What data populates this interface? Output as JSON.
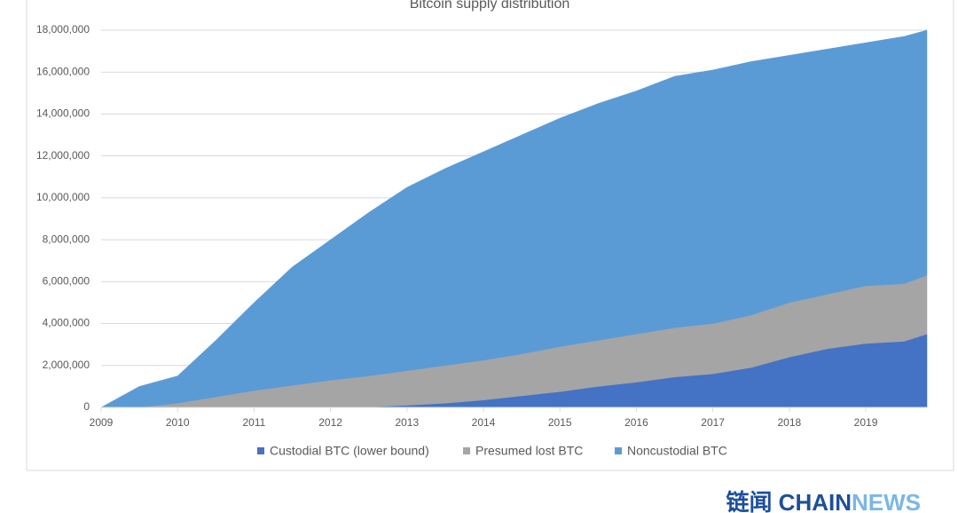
{
  "chart_data": {
    "type": "stacked_area",
    "title": "Bitcoin supply distribution",
    "x": [
      2009,
      2009.4,
      2009.5,
      2010,
      2010.5,
      2011,
      2011.5,
      2012,
      2012.5,
      2013,
      2013.5,
      2014,
      2014.5,
      2015,
      2015.5,
      2016,
      2016.5,
      2017,
      2017.5,
      2018,
      2018.5,
      2019,
      2019.5,
      2019.8
    ],
    "series": [
      {
        "name": "Custodial BTC (lower bound)",
        "color": "#4472c4",
        "values": [
          0,
          0,
          0,
          0,
          0,
          0,
          0,
          0,
          20000,
          100000,
          200000,
          350000,
          550000,
          750000,
          1000000,
          1200000,
          1450000,
          1600000,
          1900000,
          2400000,
          2800000,
          3050000,
          3150000,
          3500000
        ]
      },
      {
        "name": "Presumed lost BTC",
        "color": "#a5a5a5",
        "values": [
          0,
          0,
          0,
          200000,
          500000,
          800000,
          1050000,
          1300000,
          1480000,
          1650000,
          1800000,
          1900000,
          2000000,
          2150000,
          2200000,
          2300000,
          2350000,
          2400000,
          2500000,
          2600000,
          2600000,
          2750000,
          2750000,
          2800000
        ]
      },
      {
        "name": "Noncustodial BTC",
        "color": "#5b9bd5",
        "values": [
          0,
          800000,
          1000000,
          1300000,
          2700000,
          4200000,
          5650000,
          6700000,
          7800000,
          8750000,
          9400000,
          9950000,
          10450000,
          10900000,
          11300000,
          11600000,
          12000000,
          12100000,
          12100000,
          11800000,
          11700000,
          11600000,
          11800000,
          11700000
        ]
      }
    ],
    "xlim": [
      2009,
      2019.8
    ],
    "xticks": [
      2009,
      2010,
      2011,
      2012,
      2013,
      2014,
      2015,
      2016,
      2017,
      2018,
      2019
    ],
    "ylim": [
      0,
      18000000
    ],
    "yticks": [
      0,
      {
        "value": 2000000,
        "label": "2,000,000"
      },
      {
        "value": 4000000,
        "label": "4,000,000"
      },
      {
        "value": 6000000,
        "label": "6,000,000"
      },
      {
        "value": 8000000,
        "label": "8,000,000"
      },
      {
        "value": 10000000,
        "label": "10,000,000"
      },
      {
        "value": 12000000,
        "label": "12,000,000"
      },
      {
        "value": 14000000,
        "label": "14,000,000"
      },
      {
        "value": 16000000,
        "label": "16,000,000"
      },
      {
        "value": 18000000,
        "label": "18,000,000"
      }
    ],
    "grid": true,
    "legend": "bottom"
  },
  "watermark": [
    "链闻 CHAIN",
    "NEWS"
  ]
}
